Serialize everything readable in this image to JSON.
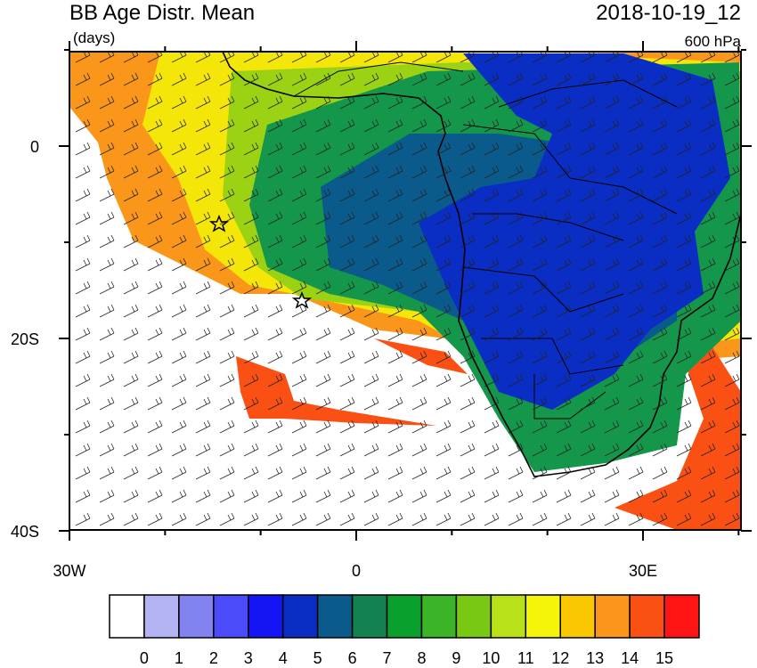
{
  "header": {
    "title": "BB Age Distr. Mean",
    "units": "(days)",
    "time": "2018-10-19_12",
    "level": "600 hPa"
  },
  "map": {
    "lat_labels": [
      "0",
      "20S",
      "40S"
    ],
    "lon_labels": [
      "30W",
      "0",
      "30E"
    ]
  },
  "colorbar": {
    "labels": [
      "0",
      "1",
      "2",
      "3",
      "4",
      "5",
      "6",
      "7",
      "8",
      "9",
      "10",
      "11",
      "12",
      "13",
      "14",
      "15"
    ],
    "colors": [
      "#ffffff",
      "#b4b4f5",
      "#8282f0",
      "#4b4bfa",
      "#1414f5",
      "#0a2dc3",
      "#0a5a8c",
      "#148250",
      "#0aa02d",
      "#3cb428",
      "#78c814",
      "#b9e119",
      "#f5f50a",
      "#fac800",
      "#fa9619",
      "#fa5014",
      "#ff1414"
    ]
  }
}
